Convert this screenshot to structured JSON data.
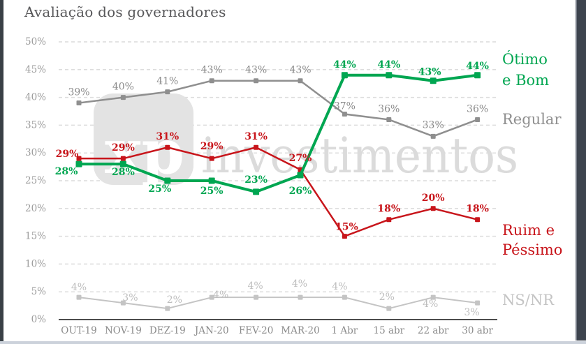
{
  "title": "Avaliação dos governadores",
  "watermark": {
    "logo": "xp",
    "text": "investimentos"
  },
  "chart_data": {
    "type": "line",
    "title": "Avaliação dos governadores",
    "categories": [
      "OUT-19",
      "NOV-19",
      "DEZ-19",
      "JAN-20",
      "FEV-20",
      "MAR-20",
      "1 Abr",
      "15 abr",
      "22 abr",
      "30 abr"
    ],
    "series": [
      {
        "name": "NS/NR",
        "color": "#C4C4C4",
        "label_color": "#BDBDBD",
        "bold_labels": false,
        "line_width": 2,
        "marker": 7,
        "values": [
          4,
          3,
          2,
          4,
          4,
          4,
          4,
          2,
          4,
          3
        ]
      },
      {
        "name": "Regular",
        "color": "#8F8F8F",
        "label_color": "#8A8A8A",
        "bold_labels": false,
        "line_width": 2.5,
        "marker": 7,
        "values": [
          39,
          40,
          41,
          43,
          43,
          43,
          37,
          36,
          33,
          36
        ]
      },
      {
        "name": "Ruim e Péssimo",
        "color": "#C8151B",
        "label_color": "#C8151B",
        "bold_labels": true,
        "line_width": 2.5,
        "marker": 7,
        "values": [
          29,
          29,
          31,
          29,
          31,
          27,
          15,
          18,
          20,
          18
        ]
      },
      {
        "name": "Ótimo e Bom",
        "color": "#00A651",
        "label_color": "#00A651",
        "bold_labels": true,
        "line_width": 4,
        "marker": 9,
        "values": [
          28,
          28,
          25,
          25,
          23,
          26,
          44,
          44,
          43,
          44
        ]
      }
    ],
    "ylim": [
      0,
      50
    ],
    "ytick_step": 5,
    "ytick_suffix": "%",
    "value_suffix": "%",
    "grid": "horizontal-dashed",
    "legend_position": "right",
    "legend": [
      {
        "lines": [
          "Ótimo",
          "e Bom"
        ],
        "color": "#00A651"
      },
      {
        "lines": [
          "Regular"
        ],
        "color": "#8F8F8F"
      },
      {
        "lines": [
          "Ruim e",
          "Péssimo"
        ],
        "color": "#C8151B"
      },
      {
        "lines": [
          "NS/NR"
        ],
        "color": "#C4C4C4"
      }
    ],
    "colors": {
      "axis": "#4D4D4D",
      "grid": "#DCDCDC",
      "ytick": "#9C9C9C",
      "xtick": "#8A8A8A",
      "watermark_tile": "#E3E3E3",
      "watermark_text": "#DBDBDB"
    }
  }
}
